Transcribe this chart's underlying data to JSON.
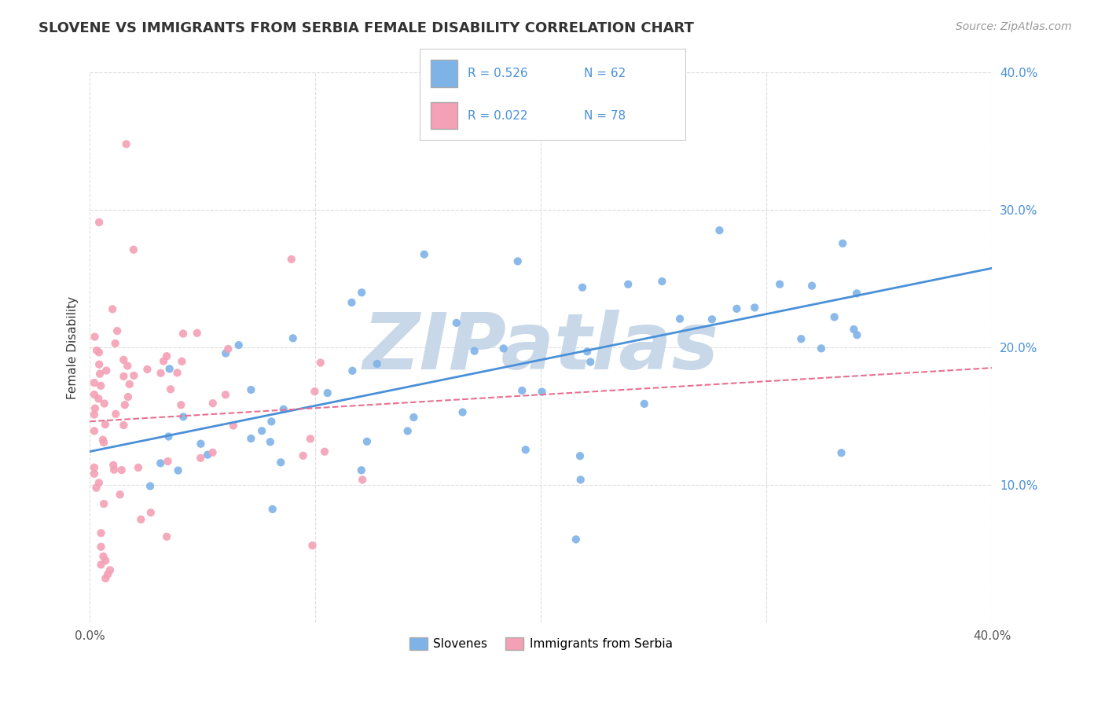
{
  "title": "SLOVENE VS IMMIGRANTS FROM SERBIA FEMALE DISABILITY CORRELATION CHART",
  "source": "Source: ZipAtlas.com",
  "ylabel": "Female Disability",
  "x_min": 0.0,
  "x_max": 0.4,
  "y_min": 0.0,
  "y_max": 0.4,
  "legend_labels": [
    "Slovenes",
    "Immigrants from Serbia"
  ],
  "R_slovene": 0.526,
  "N_slovene": 62,
  "R_serbia": 0.022,
  "N_serbia": 78,
  "slovene_color": "#7EB3E8",
  "serbia_color": "#F4A0B5",
  "slovene_line_color": "#4A90D9",
  "serbia_line_color": "#E87090",
  "watermark": "ZIPatlas",
  "watermark_color": "#C8D8E8",
  "background_color": "#FFFFFF",
  "grid_color": "#DDDDDD"
}
